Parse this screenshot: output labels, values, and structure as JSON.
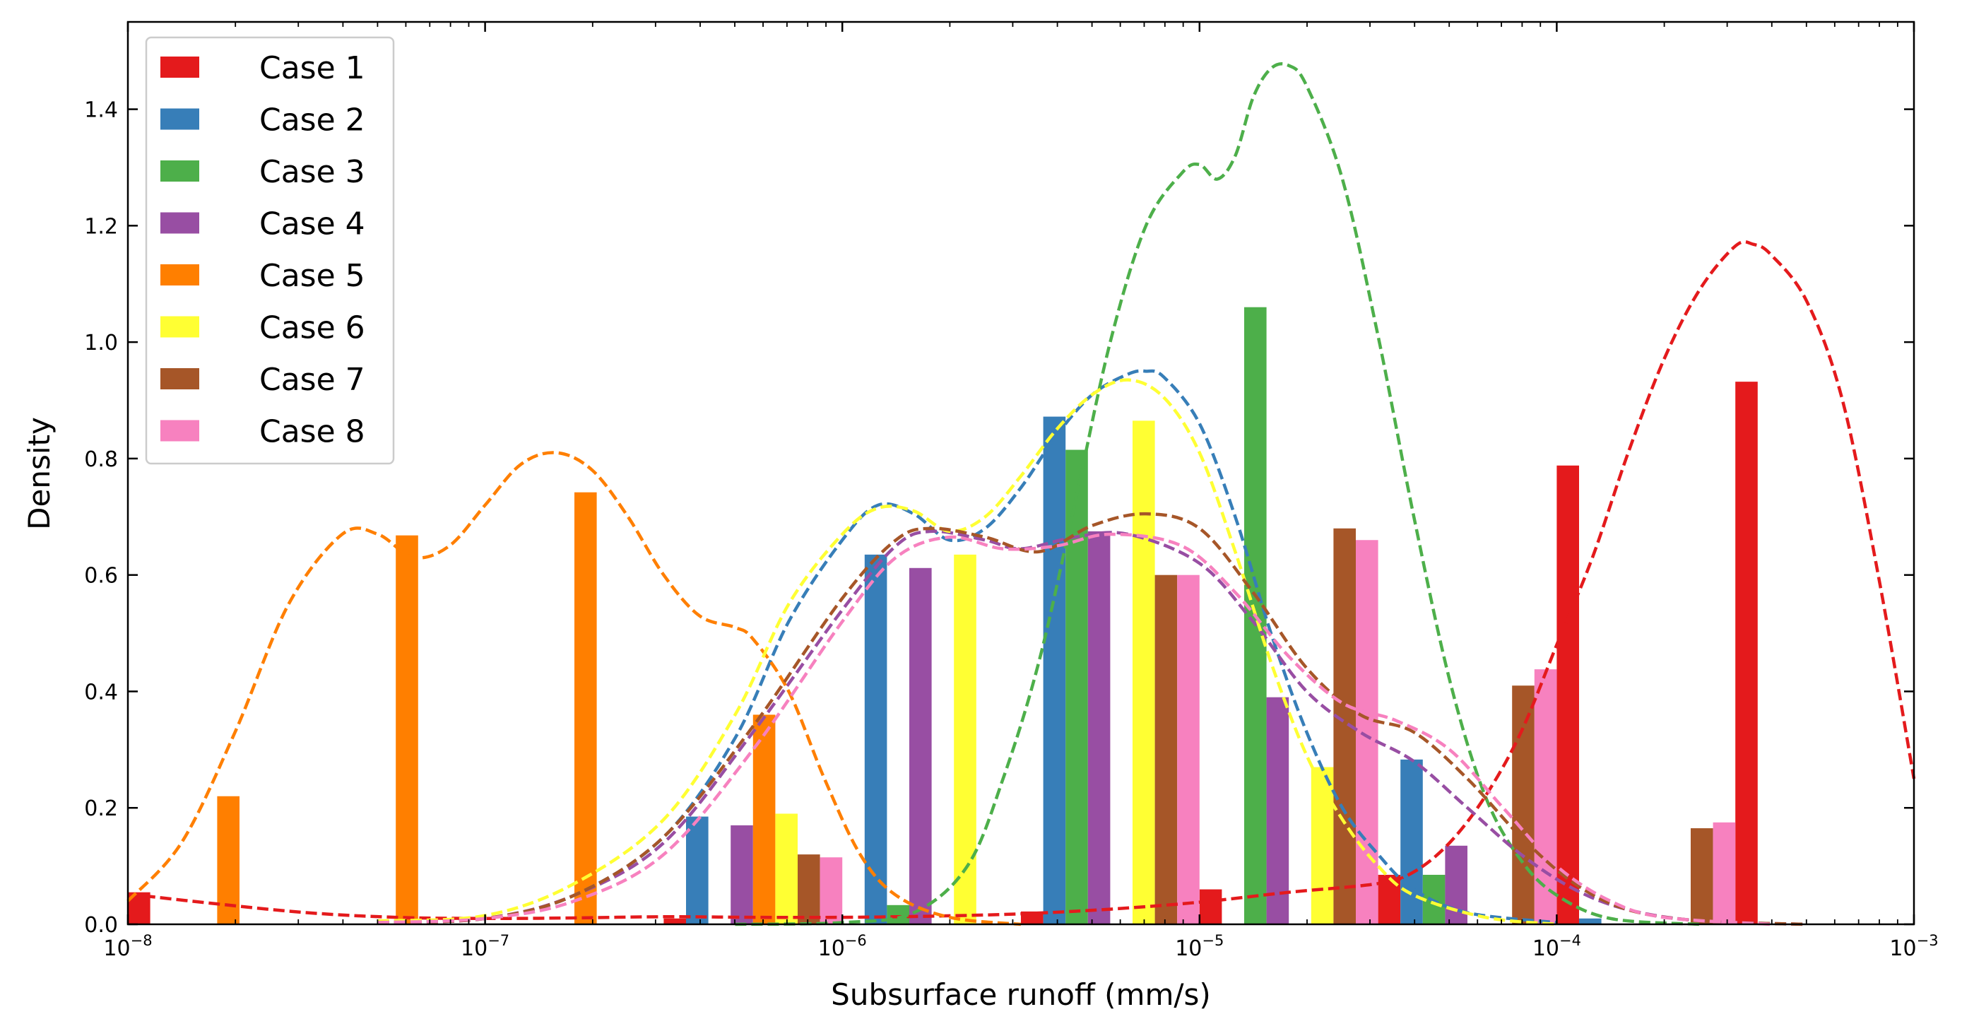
{
  "chart_data": {
    "type": "bar",
    "xlabel": "Subsurface runoff (mm/s)",
    "ylabel": "Density",
    "xscale": "log",
    "xlim": [
      1e-08,
      0.001
    ],
    "ylim": [
      0,
      1.55
    ],
    "x_ticks": [
      {
        "value": 1e-08,
        "base": "10",
        "exp": "−8"
      },
      {
        "value": 1e-07,
        "base": "10",
        "exp": "−7"
      },
      {
        "value": 1e-06,
        "base": "10",
        "exp": "−6"
      },
      {
        "value": 1e-05,
        "base": "10",
        "exp": "−5"
      },
      {
        "value": 0.0001,
        "base": "10",
        "exp": "−4"
      },
      {
        "value": 0.001,
        "base": "10",
        "exp": "−3"
      }
    ],
    "y_ticks": [
      {
        "value": 0.0,
        "label": "0.0"
      },
      {
        "value": 0.2,
        "label": "0.2"
      },
      {
        "value": 0.4,
        "label": "0.4"
      },
      {
        "value": 0.6,
        "label": "0.6"
      },
      {
        "value": 0.8,
        "label": "0.8"
      },
      {
        "value": 1.0,
        "label": "1.0"
      },
      {
        "value": 1.2,
        "label": "1.2"
      },
      {
        "value": 1.4,
        "label": "1.4"
      }
    ],
    "grid": false,
    "legend_position": "top-left",
    "bin_edges": [
      -8.0,
      -7.5,
      -7.0,
      -6.5,
      -6.0,
      -5.5,
      -5.0,
      -4.5,
      -4.0,
      -3.5,
      -3.0
    ],
    "series": [
      {
        "name": "Case 1",
        "color": "#e41a1c",
        "values": [
          0.055,
          0.0,
          0.0,
          0.01,
          0.0,
          0.022,
          0.06,
          0.085,
          0.788,
          0.932
        ],
        "kde": [
          [
            -8.0,
            0.052
          ],
          [
            -7.75,
            0.035
          ],
          [
            -7.5,
            0.02
          ],
          [
            -7.25,
            0.012
          ],
          [
            -7.0,
            0.01
          ],
          [
            -6.75,
            0.011
          ],
          [
            -6.5,
            0.013
          ],
          [
            -6.25,
            0.012
          ],
          [
            -6.0,
            0.012
          ],
          [
            -5.75,
            0.014
          ],
          [
            -5.5,
            0.018
          ],
          [
            -5.25,
            0.026
          ],
          [
            -5.0,
            0.038
          ],
          [
            -4.75,
            0.055
          ],
          [
            -4.5,
            0.07
          ],
          [
            -4.4,
            0.09
          ],
          [
            -4.3,
            0.14
          ],
          [
            -4.2,
            0.22
          ],
          [
            -4.1,
            0.33
          ],
          [
            -4.0,
            0.48
          ],
          [
            -3.9,
            0.63
          ],
          [
            -3.8,
            0.81
          ],
          [
            -3.7,
            0.97
          ],
          [
            -3.6,
            1.09
          ],
          [
            -3.5,
            1.165
          ],
          [
            -3.45,
            1.168
          ],
          [
            -3.4,
            1.15
          ],
          [
            -3.3,
            1.07
          ],
          [
            -3.2,
            0.9
          ],
          [
            -3.1,
            0.6
          ],
          [
            -3.0,
            0.25
          ]
        ]
      },
      {
        "name": "Case 2",
        "color": "#377eb8",
        "values": [
          0.0,
          0.0,
          0.0,
          0.185,
          0.635,
          0.872,
          0.0,
          0.283,
          0.01,
          0.0
        ],
        "kde": [
          [
            -7.3,
            0.005
          ],
          [
            -7.0,
            0.01
          ],
          [
            -6.75,
            0.05
          ],
          [
            -6.5,
            0.15
          ],
          [
            -6.3,
            0.32
          ],
          [
            -6.15,
            0.52
          ],
          [
            -6.0,
            0.66
          ],
          [
            -5.9,
            0.72
          ],
          [
            -5.8,
            0.705
          ],
          [
            -5.7,
            0.66
          ],
          [
            -5.6,
            0.68
          ],
          [
            -5.5,
            0.75
          ],
          [
            -5.4,
            0.84
          ],
          [
            -5.3,
            0.91
          ],
          [
            -5.2,
            0.945
          ],
          [
            -5.15,
            0.95
          ],
          [
            -5.1,
            0.94
          ],
          [
            -5.0,
            0.86
          ],
          [
            -4.9,
            0.7
          ],
          [
            -4.8,
            0.5
          ],
          [
            -4.7,
            0.33
          ],
          [
            -4.6,
            0.2
          ],
          [
            -4.5,
            0.12
          ],
          [
            -4.4,
            0.06
          ],
          [
            -4.25,
            0.02
          ],
          [
            -4.0,
            0.003
          ]
        ]
      },
      {
        "name": "Case 3",
        "color": "#4daf4a",
        "values": [
          0.0,
          0.0,
          0.0,
          0.0,
          0.033,
          0.815,
          1.06,
          0.085,
          0.0,
          0.0
        ],
        "kde": [
          [
            -6.3,
            0.0
          ],
          [
            -6.0,
            0.003
          ],
          [
            -5.8,
            0.02
          ],
          [
            -5.65,
            0.1
          ],
          [
            -5.55,
            0.25
          ],
          [
            -5.45,
            0.45
          ],
          [
            -5.35,
            0.72
          ],
          [
            -5.25,
            1.0
          ],
          [
            -5.15,
            1.2
          ],
          [
            -5.05,
            1.29
          ],
          [
            -5.0,
            1.305
          ],
          [
            -4.95,
            1.28
          ],
          [
            -4.9,
            1.32
          ],
          [
            -4.85,
            1.42
          ],
          [
            -4.8,
            1.47
          ],
          [
            -4.75,
            1.475
          ],
          [
            -4.7,
            1.44
          ],
          [
            -4.6,
            1.28
          ],
          [
            -4.5,
            1.01
          ],
          [
            -4.4,
            0.7
          ],
          [
            -4.3,
            0.42
          ],
          [
            -4.2,
            0.22
          ],
          [
            -4.1,
            0.11
          ],
          [
            -4.0,
            0.05
          ],
          [
            -3.85,
            0.01
          ],
          [
            -3.6,
            0.0
          ]
        ]
      },
      {
        "name": "Case 4",
        "color": "#984ea3",
        "values": [
          0.0,
          0.0,
          0.0,
          0.17,
          0.612,
          0.675,
          0.39,
          0.135,
          0.0,
          0.0
        ],
        "kde": [
          [
            -7.3,
            0.003
          ],
          [
            -7.0,
            0.01
          ],
          [
            -6.75,
            0.05
          ],
          [
            -6.5,
            0.14
          ],
          [
            -6.25,
            0.33
          ],
          [
            -6.0,
            0.54
          ],
          [
            -5.85,
            0.65
          ],
          [
            -5.75,
            0.675
          ],
          [
            -5.6,
            0.66
          ],
          [
            -5.5,
            0.645
          ],
          [
            -5.35,
            0.665
          ],
          [
            -5.2,
            0.67
          ],
          [
            -5.0,
            0.62
          ],
          [
            -4.85,
            0.52
          ],
          [
            -4.7,
            0.4
          ],
          [
            -4.55,
            0.33
          ],
          [
            -4.4,
            0.28
          ],
          [
            -4.25,
            0.2
          ],
          [
            -4.1,
            0.12
          ],
          [
            -3.95,
            0.06
          ],
          [
            -3.8,
            0.025
          ],
          [
            -3.6,
            0.006
          ],
          [
            -3.3,
            0.0
          ]
        ]
      },
      {
        "name": "Case 5",
        "color": "#ff7f00",
        "values": [
          0.22,
          0.668,
          0.742,
          0.36,
          0.0,
          0.0,
          0.0,
          0.0,
          0.0,
          0.0
        ],
        "kde": [
          [
            -8.0,
            0.04
          ],
          [
            -7.85,
            0.14
          ],
          [
            -7.7,
            0.33
          ],
          [
            -7.55,
            0.55
          ],
          [
            -7.4,
            0.67
          ],
          [
            -7.3,
            0.67
          ],
          [
            -7.2,
            0.63
          ],
          [
            -7.1,
            0.65
          ],
          [
            -7.0,
            0.72
          ],
          [
            -6.9,
            0.79
          ],
          [
            -6.8,
            0.81
          ],
          [
            -6.7,
            0.78
          ],
          [
            -6.6,
            0.7
          ],
          [
            -6.5,
            0.6
          ],
          [
            -6.4,
            0.53
          ],
          [
            -6.3,
            0.51
          ],
          [
            -6.25,
            0.49
          ],
          [
            -6.15,
            0.4
          ],
          [
            -6.05,
            0.25
          ],
          [
            -5.95,
            0.12
          ],
          [
            -5.85,
            0.05
          ],
          [
            -5.7,
            0.012
          ],
          [
            -5.5,
            0.0
          ]
        ]
      },
      {
        "name": "Case 6",
        "color": "#ffff33",
        "values": [
          0.0,
          0.0,
          0.0,
          0.19,
          0.635,
          0.865,
          0.27,
          0.0,
          0.0,
          0.0
        ],
        "kde": [
          [
            -7.3,
            0.006
          ],
          [
            -7.0,
            0.015
          ],
          [
            -6.75,
            0.07
          ],
          [
            -6.5,
            0.18
          ],
          [
            -6.3,
            0.36
          ],
          [
            -6.15,
            0.55
          ],
          [
            -6.0,
            0.67
          ],
          [
            -5.9,
            0.715
          ],
          [
            -5.8,
            0.71
          ],
          [
            -5.7,
            0.675
          ],
          [
            -5.6,
            0.7
          ],
          [
            -5.5,
            0.77
          ],
          [
            -5.4,
            0.85
          ],
          [
            -5.3,
            0.91
          ],
          [
            -5.2,
            0.935
          ],
          [
            -5.1,
            0.905
          ],
          [
            -5.0,
            0.81
          ],
          [
            -4.9,
            0.64
          ],
          [
            -4.8,
            0.45
          ],
          [
            -4.7,
            0.29
          ],
          [
            -4.6,
            0.18
          ],
          [
            -4.5,
            0.1
          ],
          [
            -4.4,
            0.05
          ],
          [
            -4.2,
            0.012
          ],
          [
            -4.0,
            0.0
          ]
        ]
      },
      {
        "name": "Case 7",
        "color": "#a65628",
        "values": [
          0.0,
          0.0,
          0.0,
          0.12,
          0.0,
          0.6,
          0.68,
          0.41,
          0.165,
          0.0
        ],
        "kde": [
          [
            -7.3,
            0.003
          ],
          [
            -7.0,
            0.01
          ],
          [
            -6.75,
            0.05
          ],
          [
            -6.5,
            0.15
          ],
          [
            -6.25,
            0.34
          ],
          [
            -6.0,
            0.56
          ],
          [
            -5.85,
            0.66
          ],
          [
            -5.75,
            0.68
          ],
          [
            -5.6,
            0.665
          ],
          [
            -5.45,
            0.64
          ],
          [
            -5.3,
            0.685
          ],
          [
            -5.15,
            0.705
          ],
          [
            -5.0,
            0.68
          ],
          [
            -4.85,
            0.57
          ],
          [
            -4.7,
            0.44
          ],
          [
            -4.55,
            0.36
          ],
          [
            -4.4,
            0.33
          ],
          [
            -4.25,
            0.25
          ],
          [
            -4.1,
            0.15
          ],
          [
            -3.95,
            0.07
          ],
          [
            -3.8,
            0.025
          ],
          [
            -3.6,
            0.006
          ],
          [
            -3.3,
            0.0
          ]
        ]
      },
      {
        "name": "Case 8",
        "color": "#f781bf",
        "values": [
          0.0,
          0.0,
          0.0,
          0.115,
          0.0,
          0.6,
          0.66,
          0.438,
          0.175,
          0.0
        ],
        "kde": [
          [
            -7.3,
            0.003
          ],
          [
            -7.0,
            0.01
          ],
          [
            -6.75,
            0.04
          ],
          [
            -6.5,
            0.12
          ],
          [
            -6.25,
            0.3
          ],
          [
            -6.0,
            0.52
          ],
          [
            -5.85,
            0.63
          ],
          [
            -5.7,
            0.665
          ],
          [
            -5.55,
            0.645
          ],
          [
            -5.4,
            0.65
          ],
          [
            -5.25,
            0.67
          ],
          [
            -5.05,
            0.65
          ],
          [
            -4.9,
            0.57
          ],
          [
            -4.75,
            0.46
          ],
          [
            -4.6,
            0.38
          ],
          [
            -4.45,
            0.35
          ],
          [
            -4.3,
            0.3
          ],
          [
            -4.15,
            0.2
          ],
          [
            -4.0,
            0.1
          ],
          [
            -3.85,
            0.04
          ],
          [
            -3.7,
            0.012
          ],
          [
            -3.4,
            0.0
          ]
        ]
      }
    ]
  }
}
